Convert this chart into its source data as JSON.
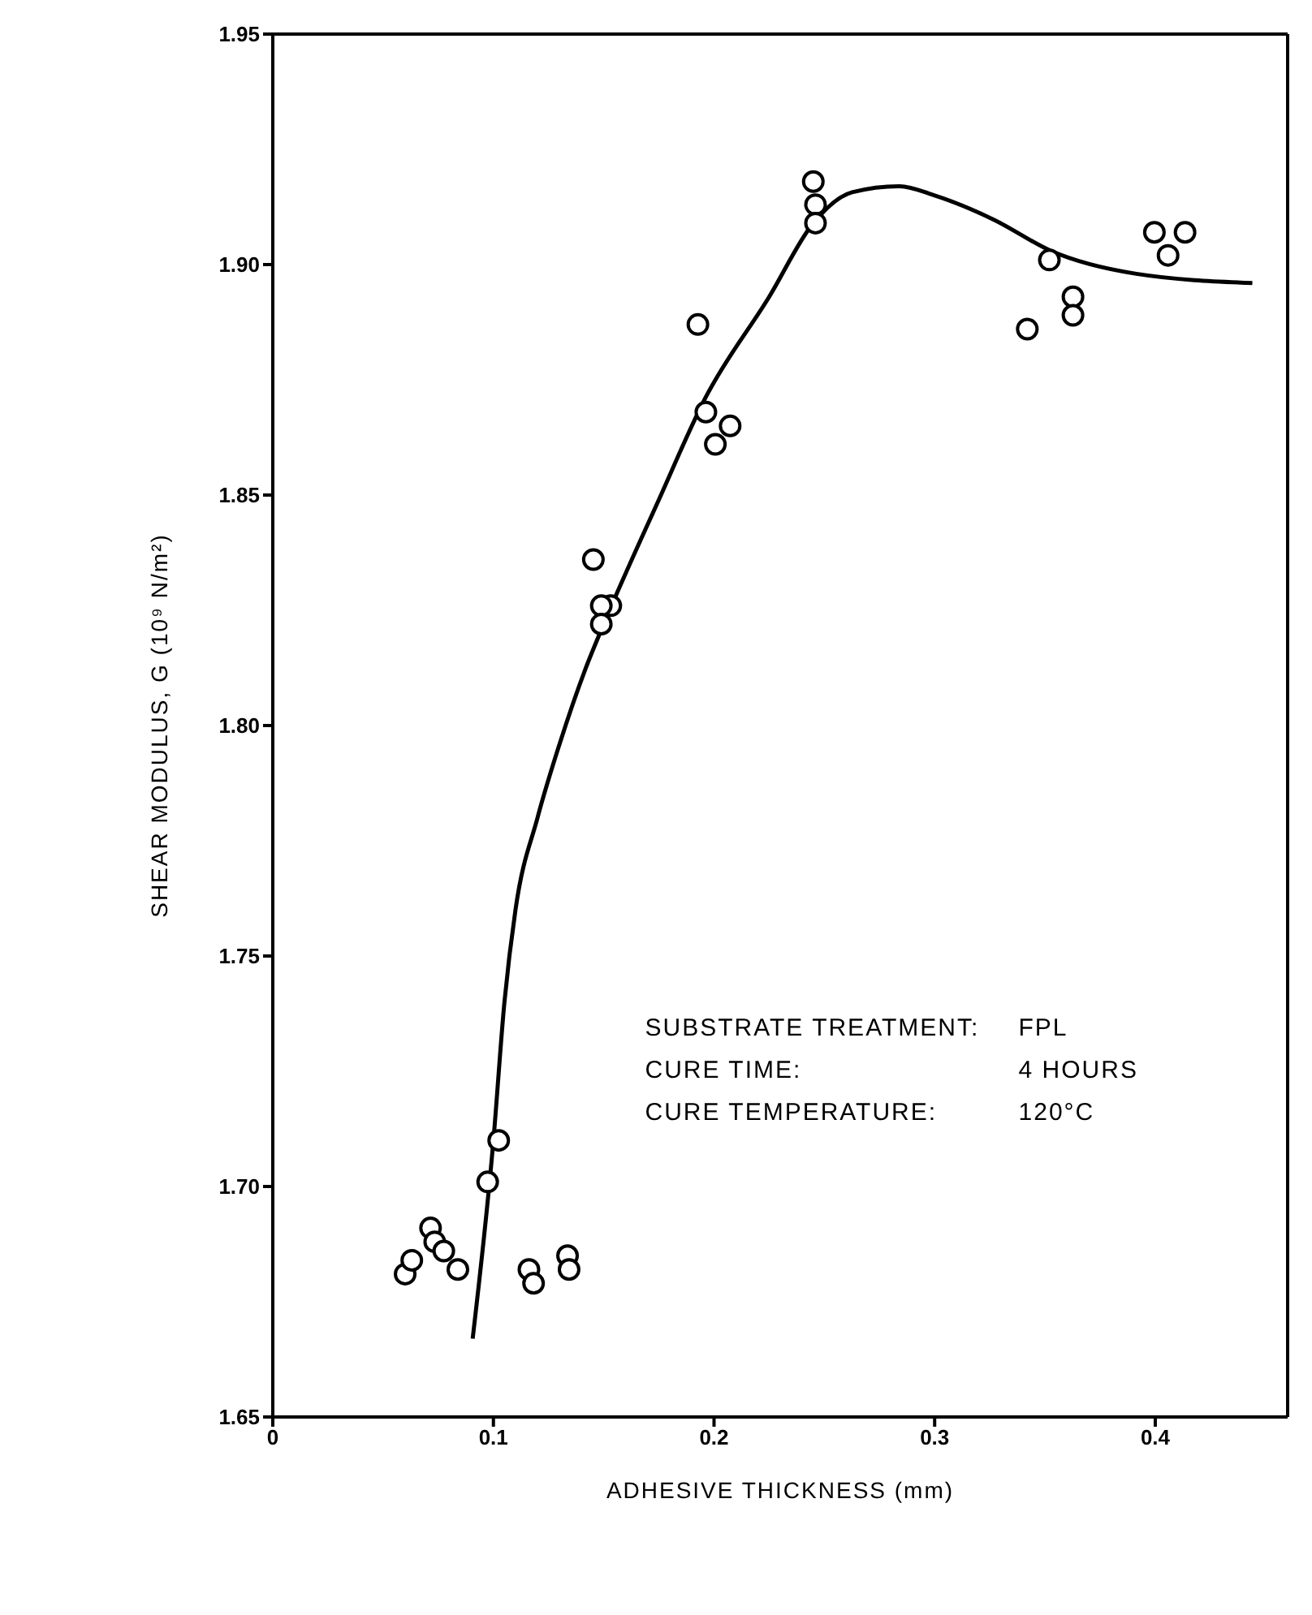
{
  "chart_data": {
    "type": "scatter",
    "xlabel": "ADHESIVE THICKNESS (mm)",
    "ylabel": "SHEAR MODULUS, G (10⁹ N/m²)",
    "xlim": [
      0,
      0.46
    ],
    "xticks": [
      0,
      0.1,
      0.2,
      0.3,
      0.4
    ],
    "ylim": [
      1.65,
      1.95
    ],
    "yticks": [
      1.65,
      {
        "value": 1.7,
        "label": "1.70"
      },
      1.75,
      {
        "value": 1.8,
        "label": "1.80"
      },
      1.85,
      {
        "value": 1.9,
        "label": "1.90"
      },
      1.95
    ],
    "marker": "circle",
    "annotations": [
      "SUBSTRATE TREATMENT:",
      "FPL",
      "CURE TIME:",
      "4 HOURS",
      "CURE TEMPERATURE:",
      "120°C"
    ],
    "series": [
      {
        "color": "#000000",
        "x": [
          0.06,
          0.063,
          0.0715,
          0.0734,
          0.0775,
          0.0839,
          0.0974,
          0.1024,
          0.1161,
          0.1182,
          0.1336,
          0.1343,
          0.1453,
          0.1532,
          0.1489,
          0.1489,
          0.1927,
          0.1963,
          0.2006,
          0.2073,
          0.245,
          0.246,
          0.246,
          0.342,
          0.352,
          0.3627,
          0.3627,
          0.3996,
          0.4058,
          0.4135
        ],
        "values": [
          1.681,
          1.684,
          1.691,
          1.688,
          1.686,
          1.682,
          1.701,
          1.71,
          1.682,
          1.679,
          1.685,
          1.682,
          1.836,
          1.826,
          1.826,
          1.822,
          1.887,
          1.868,
          1.861,
          1.865,
          1.918,
          1.913,
          1.909,
          1.886,
          1.901,
          1.893,
          1.889,
          1.907,
          1.902,
          1.907
        ]
      },
      {
        "type": "line",
        "color": "#000000",
        "marker": "none",
        "line_style": "solid",
        "x": [
          0.0906,
          0.1,
          0.105,
          0.11,
          0.12,
          0.13,
          0.1415,
          0.15,
          0.175,
          0.196,
          0.225,
          0.245,
          0.2626,
          0.284,
          0.3,
          0.327,
          0.3526,
          0.3914,
          0.444
        ],
        "values": [
          1.667,
          1.71,
          1.74,
          1.76,
          1.78,
          1.796,
          1.812,
          1.822,
          1.849,
          1.871,
          1.893,
          1.909,
          1.9157,
          1.917,
          1.915,
          1.9097,
          1.903,
          1.898,
          1.896
        ]
      }
    ]
  }
}
